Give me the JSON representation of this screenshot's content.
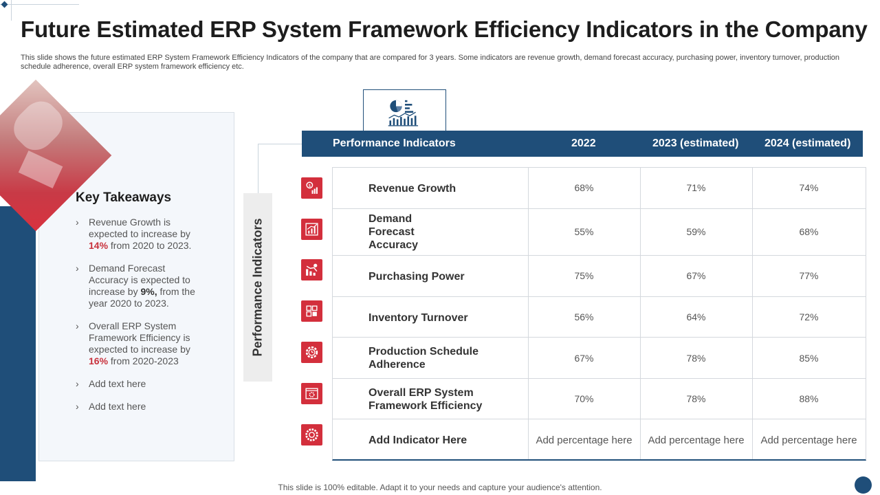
{
  "slide": {
    "title": "Future Estimated ERP System Framework Efficiency Indicators in the Company",
    "subtitle": "This slide shows the future estimated ERP System Framework Efficiency Indicators of the company that are compared for 3 years. Some indicators are revenue growth, demand forecast accuracy, purchasing power, inventory turnover,  production schedule adherence, overall ERP system framework efficiency etc.",
    "footer": "This slide is 100% editable. Adapt it to your needs and capture your audience's attention."
  },
  "takeaways": {
    "title": "Key Takeaways",
    "items": [
      {
        "pre": "Revenue Growth is expected to increase by ",
        "highlight": "14%",
        "post": " from 2020 to 2023."
      },
      {
        "pre": "Demand Forecast Accuracy is expected to increase by ",
        "highlight": "9%,",
        "post": " from the year 2020 to 2023."
      },
      {
        "pre": "Overall ERP System Framework Efficiency is expected to increase by ",
        "highlight": "16%",
        "post": " from 2020-2023"
      },
      {
        "pre": "Add text here",
        "highlight": "",
        "post": ""
      },
      {
        "pre": "Add text here",
        "highlight": "",
        "post": ""
      }
    ]
  },
  "side_label": "Performance Indicators",
  "table": {
    "headers": [
      "Performance Indicators",
      "2022",
      "2023 (estimated)",
      "2024 (estimated)"
    ],
    "rows": [
      {
        "name": "Revenue Growth",
        "icon": "revenue-growth-icon",
        "values": [
          "68%",
          "71%",
          "74%"
        ]
      },
      {
        "name": "Demand Forecast Accuracy",
        "icon": "forecast-chart-icon",
        "values": [
          "55%",
          "59%",
          "68%"
        ]
      },
      {
        "name": "Purchasing Power",
        "icon": "purchasing-chart-icon",
        "values": [
          "75%",
          "67%",
          "77%"
        ]
      },
      {
        "name": "Inventory Turnover",
        "icon": "inventory-boxes-icon",
        "values": [
          "56%",
          "64%",
          "72%"
        ]
      },
      {
        "name": "Production Schedule Adherence",
        "icon": "gear-clock-icon",
        "values": [
          "67%",
          "78%",
          "85%"
        ]
      },
      {
        "name": "Overall ERP System Framework Efficiency",
        "icon": "browser-gear-icon",
        "values": [
          "70%",
          "78%",
          "88%"
        ]
      },
      {
        "name": "Add Indicator Here",
        "icon": "gear-icon",
        "values": [
          "Add percentage here",
          "Add percentage here",
          "Add percentage here"
        ]
      }
    ]
  },
  "colors": {
    "primary": "#1f4e79",
    "accent": "#d32f3c",
    "panel_bg": "#f4f7fb"
  }
}
